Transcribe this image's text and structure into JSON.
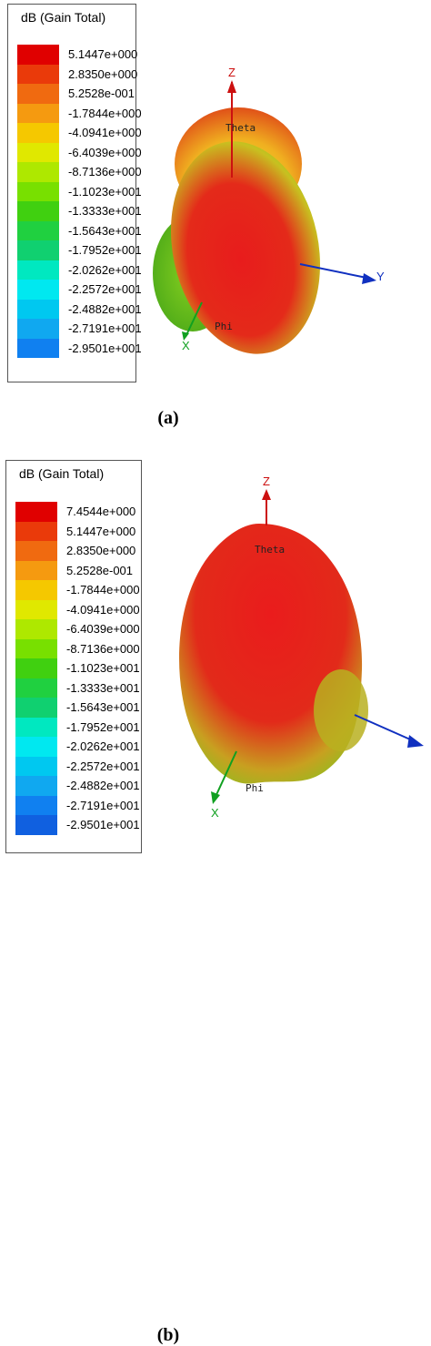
{
  "legend_title": "dB (Gain Total)",
  "colors": {
    "scale": [
      "#e00000",
      "#ea3a0a",
      "#f06a10",
      "#f59a10",
      "#f5c800",
      "#e0e800",
      "#aee800",
      "#78e000",
      "#40d010",
      "#20d040",
      "#10d070",
      "#00e8c0",
      "#00e8f0",
      "#00c8f0",
      "#10a8f0",
      "#1080f0",
      "#1060e0",
      "#1040e0",
      "#1010e0"
    ],
    "pattern_red": "#e62020",
    "pattern_green": "#7ecf28",
    "axis_z": "#cc1010",
    "axis_y": "#1030c0",
    "axis_x": "#10a020"
  },
  "panel_a": {
    "legend_values": [
      "5.1447e+000",
      "2.8350e+000",
      "5.2528e-001",
      "-1.7844e+000",
      "-4.0941e+000",
      "-6.4039e+000",
      "-8.7136e+000",
      "-1.1023e+001",
      "-1.3333e+001",
      "-1.5643e+001",
      "-1.7952e+001",
      "-2.0262e+001",
      "-2.2572e+001",
      "-2.4882e+001",
      "-2.7191e+001",
      "-2.9501e+001"
    ],
    "axis_z": "Z",
    "axis_y": "Y",
    "axis_x": "X",
    "theta": "Theta",
    "phi": "Phi",
    "caption": "(a)"
  },
  "panel_b": {
    "legend_values": [
      "7.4544e+000",
      "5.1447e+000",
      "2.8350e+000",
      "5.2528e-001",
      "-1.7844e+000",
      "-4.0941e+000",
      "-6.4039e+000",
      "-8.7136e+000",
      "-1.1023e+001",
      "-1.3333e+001",
      "-1.5643e+001",
      "-1.7952e+001",
      "-2.0262e+001",
      "-2.2572e+001",
      "-2.4882e+001",
      "-2.7191e+001",
      "-2.9501e+001"
    ],
    "axis_z": "Z",
    "axis_x": "X",
    "theta": "Theta",
    "phi": "Phi",
    "caption": "(b)"
  }
}
